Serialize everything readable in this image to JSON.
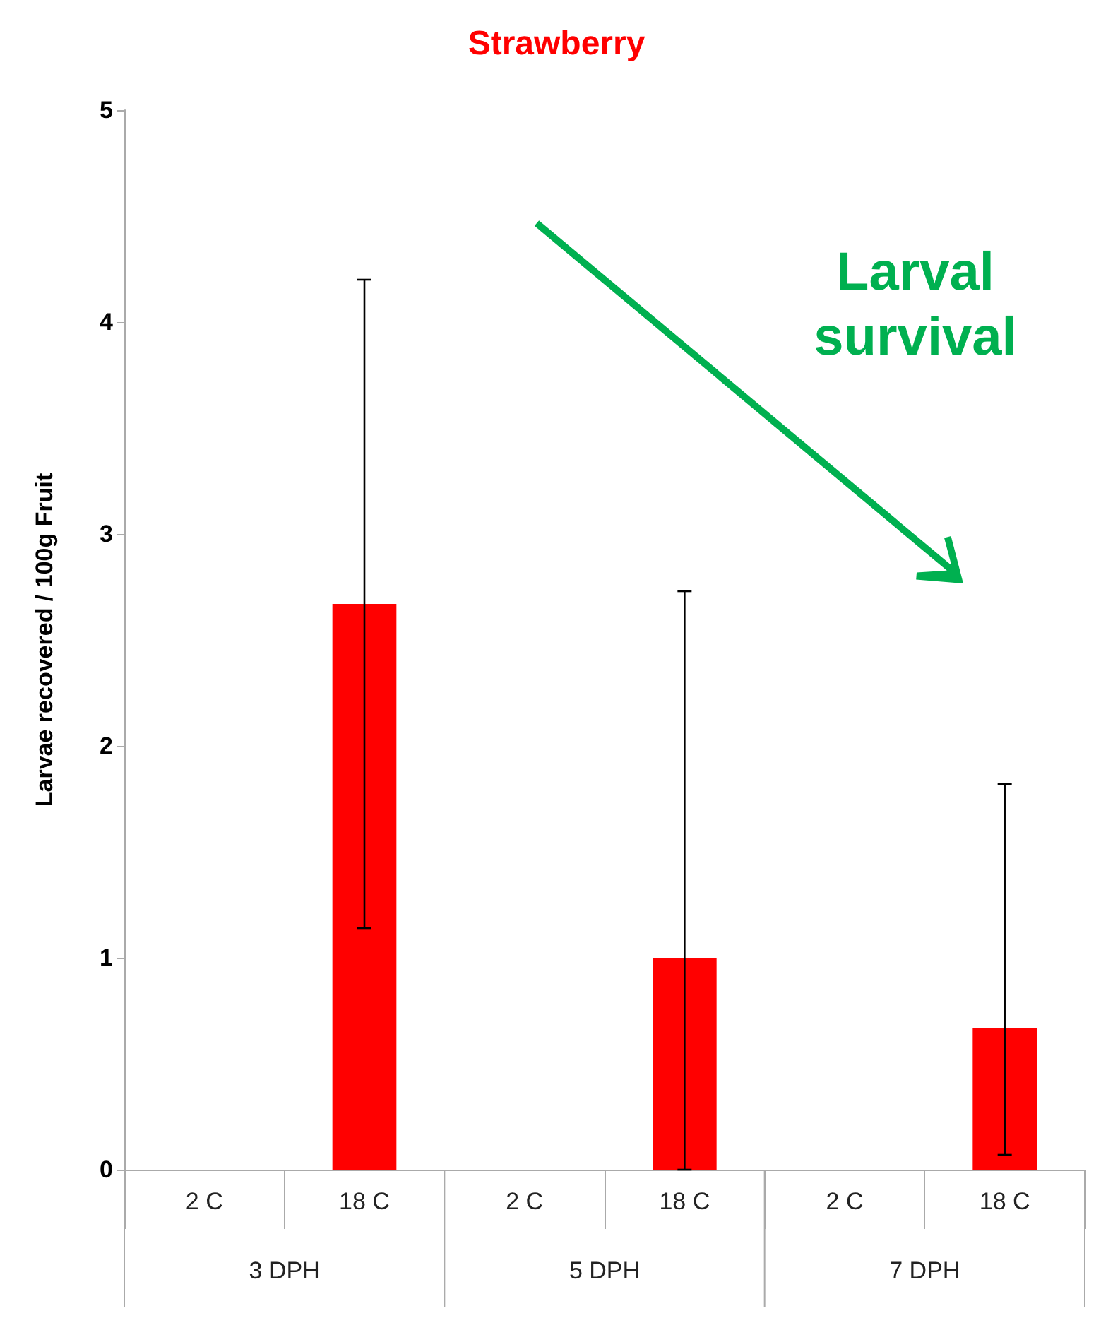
{
  "chart_data": {
    "type": "bar",
    "title": "Strawberry",
    "ylabel": "Larvae recovered / 100g Fruit",
    "categories": [
      "2 C",
      "18 C",
      "2 C",
      "18 C",
      "2 C",
      "18 C"
    ],
    "values": [
      0,
      2.67,
      0,
      1.0,
      0,
      0.67
    ],
    "errors": [
      null,
      [
        1.14,
        4.2
      ],
      null,
      [
        0,
        2.73
      ],
      null,
      [
        0.07,
        1.82
      ]
    ],
    "color": "#ff0000",
    "ylim": [
      0,
      5
    ],
    "yticks": [
      0,
      1,
      2,
      3,
      4,
      5
    ],
    "grid": false,
    "annotations": [
      "Larval survival",
      "3 DPH",
      "5 DPH",
      "7 DPH"
    ]
  }
}
